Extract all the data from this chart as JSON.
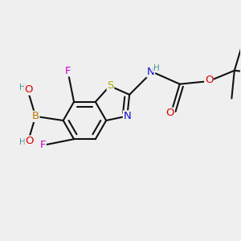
{
  "bg_color": "#efefef",
  "bond_color": "#111111",
  "bond_lw": 1.5,
  "atom_colors": {
    "C": "#111111",
    "H": "#4a9090",
    "O": "#dd0000",
    "N": "#1111cc",
    "S": "#aaaa00",
    "F": "#cc00cc",
    "B": "#bb7700"
  },
  "fs": 9.5,
  "fss": 7.5,
  "scale": 0.072
}
